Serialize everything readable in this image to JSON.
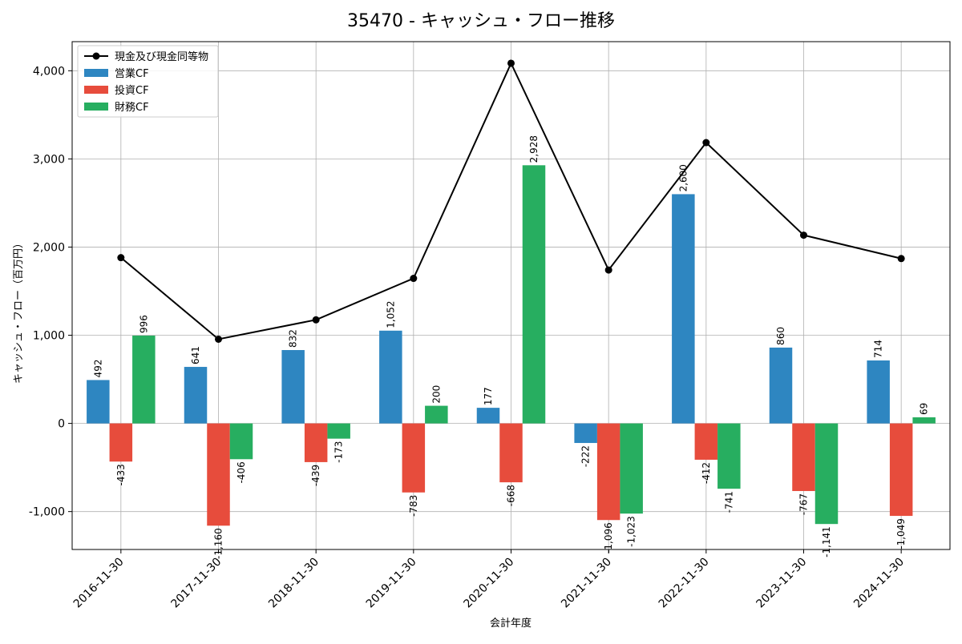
{
  "chart_data": {
    "type": "bar",
    "title": "35470 - キャッシュ・フロー推移",
    "xlabel": "会計年度",
    "ylabel": "キャッシュ・フロー（百万円）",
    "ylim": [
      -1430,
      4330
    ],
    "yticks": [
      -1000,
      0,
      1000,
      2000,
      3000,
      4000
    ],
    "ytick_labels": [
      "-1,000",
      "0",
      "1,000",
      "2,000",
      "3,000",
      "4,000"
    ],
    "grid": true,
    "legend_position": "top-left",
    "categories": [
      "2016-11-30",
      "2017-11-30",
      "2018-11-30",
      "2019-11-30",
      "2020-11-30",
      "2021-11-30",
      "2022-11-30",
      "2023-11-30",
      "2024-11-30"
    ],
    "series": [
      {
        "name": "営業CF",
        "kind": "bar",
        "color": "#2e86c1",
        "values": [
          492,
          641,
          832,
          1052,
          177,
          -222,
          2600,
          860,
          714
        ],
        "labels": [
          "492",
          "641",
          "832",
          "1,052",
          "177",
          "-222",
          "2,600",
          "860",
          "714"
        ]
      },
      {
        "name": "投資CF",
        "kind": "bar",
        "color": "#e74c3c",
        "values": [
          -433,
          -1160,
          -439,
          -783,
          -668,
          -1096,
          -412,
          -767,
          -1049
        ],
        "labels": [
          "-433",
          "-1,160",
          "-439",
          "-783",
          "-668",
          "-1,096",
          "-412",
          "-767",
          "-1,049"
        ]
      },
      {
        "name": "財務CF",
        "kind": "bar",
        "color": "#27ae60",
        "values": [
          996,
          -406,
          -173,
          200,
          2928,
          -1023,
          -741,
          -1141,
          69
        ],
        "labels": [
          "996",
          "-406",
          "-173",
          "200",
          "2,928",
          "-1,023",
          "-741",
          "-1,141",
          "69"
        ]
      },
      {
        "name": "現金及び現金同等物",
        "kind": "line",
        "color": "#000000",
        "values": [
          1880,
          955,
          1175,
          1645,
          4085,
          1740,
          3185,
          2135,
          1870
        ]
      }
    ]
  }
}
